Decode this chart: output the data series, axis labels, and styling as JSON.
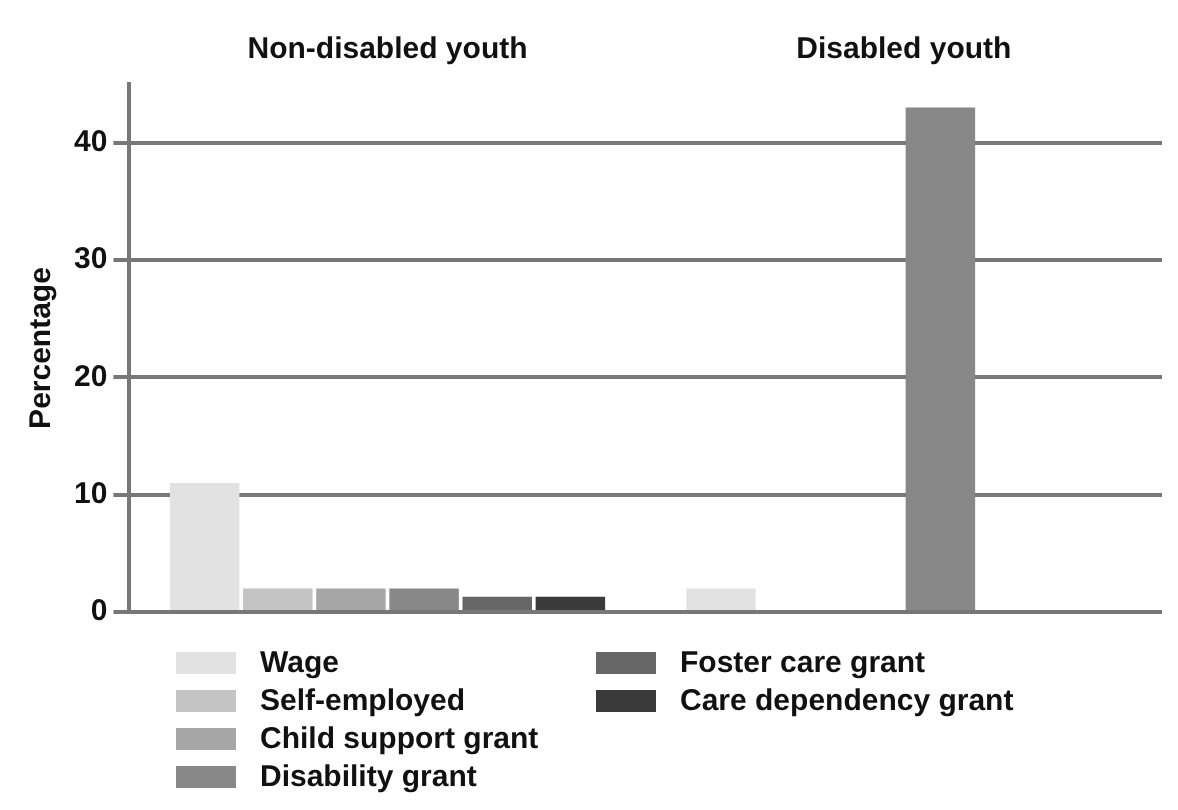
{
  "chart_data": {
    "type": "bar",
    "ylabel": "Percentage",
    "categories": [
      "Non-disabled youth",
      "Disabled youth"
    ],
    "series": [
      {
        "name": "Wage",
        "color": "#e2e2e2",
        "values": [
          11,
          2
        ]
      },
      {
        "name": "Self-employed",
        "color": "#c4c4c4",
        "values": [
          2,
          null
        ]
      },
      {
        "name": "Child support grant",
        "color": "#a6a6a6",
        "values": [
          2,
          null
        ]
      },
      {
        "name": "Disability grant",
        "color": "#888888",
        "values": [
          2,
          43
        ]
      },
      {
        "name": "Foster care grant",
        "color": "#666666",
        "values": [
          1.3,
          null
        ]
      },
      {
        "name": "Care dependency grant",
        "color": "#3a3a3a",
        "values": [
          1.3,
          null
        ]
      }
    ],
    "ylim": [
      0,
      45
    ],
    "yticks": [
      0,
      10,
      20,
      30,
      40
    ],
    "grid": "y",
    "legend": "bottom"
  }
}
